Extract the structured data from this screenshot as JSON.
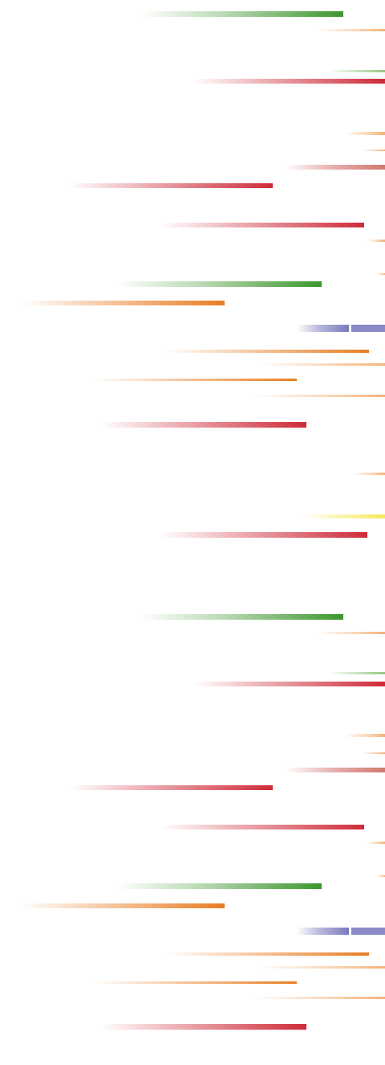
{
  "palette": {
    "green": "#3d962e",
    "red": "#ce2a38",
    "orange": "#e87d22",
    "peach": "#f4b278",
    "light_green": "#96c882",
    "yellow": "#f6e85a",
    "purple": "#7a7abe",
    "background": "#ffffff"
  },
  "pattern": {
    "description_visible_text": "",
    "repeats": 2
  }
}
